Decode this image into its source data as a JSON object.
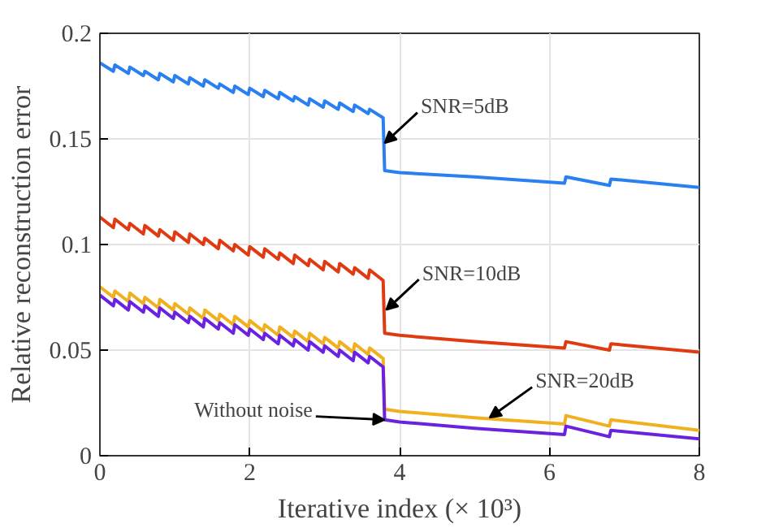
{
  "chart_data": {
    "type": "line",
    "xlabel": "Iterative index (× 10³)",
    "ylabel": "Relative reconstruction error",
    "x": [
      0,
      0.18,
      0.2,
      0.38,
      0.4,
      0.58,
      0.6,
      0.78,
      0.8,
      0.98,
      1.0,
      1.18,
      1.2,
      1.38,
      1.4,
      1.58,
      1.6,
      1.78,
      1.8,
      1.98,
      2.0,
      2.18,
      2.2,
      2.38,
      2.4,
      2.58,
      2.6,
      2.78,
      2.8,
      2.98,
      3.0,
      3.18,
      3.2,
      3.38,
      3.4,
      3.58,
      3.6,
      3.78,
      3.8,
      4.0,
      5.0,
      6.2,
      6.22,
      6.8,
      6.82,
      8.0
    ],
    "series": [
      {
        "color": "#2a80f0",
        "values": [
          0.186,
          0.182,
          0.185,
          0.181,
          0.184,
          0.18,
          0.182,
          0.178,
          0.181,
          0.177,
          0.18,
          0.176,
          0.179,
          0.175,
          0.178,
          0.174,
          0.176,
          0.172,
          0.175,
          0.171,
          0.174,
          0.17,
          0.173,
          0.169,
          0.172,
          0.168,
          0.17,
          0.166,
          0.169,
          0.165,
          0.168,
          0.164,
          0.167,
          0.163,
          0.166,
          0.162,
          0.164,
          0.16,
          0.135,
          0.134,
          0.132,
          0.129,
          0.132,
          0.128,
          0.131,
          0.127
        ]
      },
      {
        "color": "#e03a12",
        "values": [
          0.113,
          0.108,
          0.112,
          0.107,
          0.11,
          0.105,
          0.109,
          0.104,
          0.107,
          0.102,
          0.106,
          0.101,
          0.105,
          0.1,
          0.103,
          0.098,
          0.102,
          0.097,
          0.1,
          0.095,
          0.099,
          0.094,
          0.098,
          0.093,
          0.096,
          0.091,
          0.095,
          0.09,
          0.093,
          0.088,
          0.092,
          0.087,
          0.091,
          0.086,
          0.089,
          0.084,
          0.088,
          0.083,
          0.058,
          0.057,
          0.054,
          0.051,
          0.054,
          0.05,
          0.053,
          0.049
        ]
      },
      {
        "color": "#f0b020",
        "values": [
          0.08,
          0.075,
          0.078,
          0.073,
          0.077,
          0.072,
          0.075,
          0.07,
          0.074,
          0.069,
          0.072,
          0.067,
          0.07,
          0.065,
          0.069,
          0.064,
          0.067,
          0.062,
          0.066,
          0.061,
          0.064,
          0.059,
          0.062,
          0.057,
          0.061,
          0.056,
          0.059,
          0.054,
          0.058,
          0.053,
          0.056,
          0.051,
          0.054,
          0.049,
          0.053,
          0.048,
          0.051,
          0.046,
          0.022,
          0.021,
          0.018,
          0.015,
          0.019,
          0.014,
          0.017,
          0.012
        ]
      },
      {
        "color": "#6a22e0",
        "values": [
          0.076,
          0.071,
          0.074,
          0.069,
          0.073,
          0.068,
          0.071,
          0.066,
          0.07,
          0.065,
          0.068,
          0.063,
          0.066,
          0.061,
          0.065,
          0.06,
          0.063,
          0.058,
          0.062,
          0.057,
          0.06,
          0.055,
          0.058,
          0.053,
          0.057,
          0.052,
          0.055,
          0.05,
          0.054,
          0.049,
          0.052,
          0.047,
          0.05,
          0.045,
          0.049,
          0.044,
          0.047,
          0.042,
          0.017,
          0.016,
          0.013,
          0.01,
          0.014,
          0.009,
          0.012,
          0.008
        ]
      }
    ],
    "annotations": [
      {
        "text": "SNR=5dB",
        "x": 3.8,
        "y": 0.148
      },
      {
        "text": "SNR=10dB",
        "x": 3.82,
        "y": 0.069
      },
      {
        "text": "SNR=20dB",
        "x": 5.2,
        "y": 0.018
      },
      {
        "text": "Without noise",
        "x": 3.8,
        "y": 0.017
      }
    ],
    "xlim": [
      0,
      8
    ],
    "ylim": [
      0,
      0.2
    ],
    "xticks": [
      0,
      2,
      4,
      6,
      8
    ],
    "yticks": [
      0,
      0.05,
      0.1,
      0.15,
      0.2
    ],
    "grid": true,
    "marker": "none",
    "line_style": "solid"
  }
}
